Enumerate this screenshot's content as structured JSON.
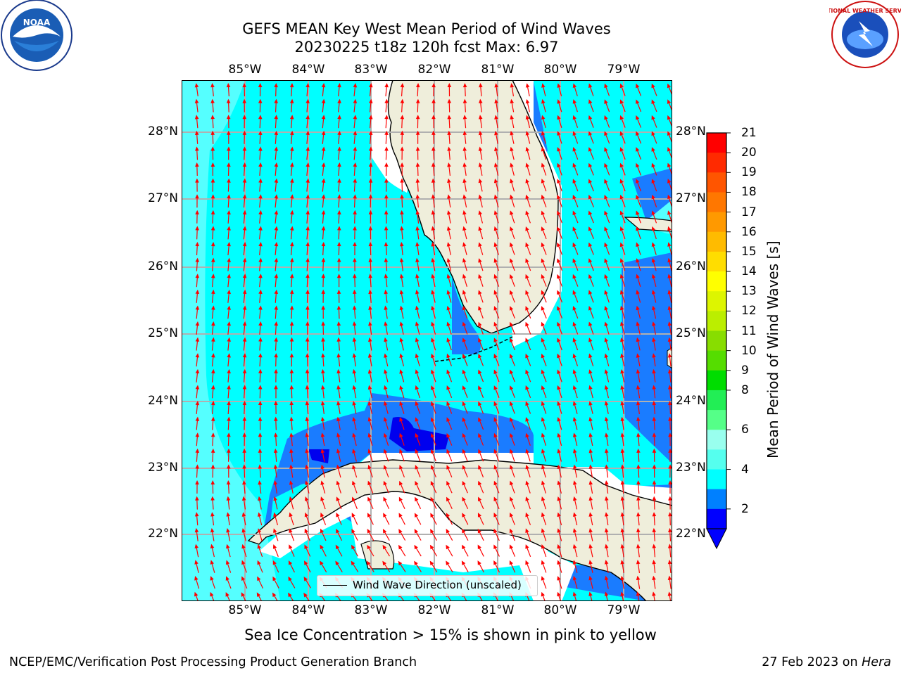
{
  "title": {
    "line1": "GEFS MEAN Key West Mean Period of Wind Waves",
    "line2": "20230225 t18z 120h fcst   Max: 6.97"
  },
  "x_ticks": [
    "85°W",
    "84°W",
    "83°W",
    "82°W",
    "81°W",
    "80°W",
    "79°W"
  ],
  "y_ticks": [
    "28°N",
    "27°N",
    "26°N",
    "25°N",
    "24°N",
    "23°N",
    "22°N"
  ],
  "legend": {
    "label": "Wind Wave Direction (unscaled)"
  },
  "colorbar": {
    "label": "Mean Period of Wind Waves [s]",
    "ticks": [
      "21",
      "20",
      "19",
      "18",
      "17",
      "16",
      "15",
      "14",
      "13",
      "12",
      "11",
      "10",
      "9",
      "8",
      "6",
      "4",
      "2"
    ],
    "colors": [
      "#ff0000",
      "#ff2a00",
      "#ff5500",
      "#ff7700",
      "#ff9900",
      "#ffbb00",
      "#ffdd00",
      "#ffff00",
      "#ddf500",
      "#bbee00",
      "#88dd00",
      "#55dd00",
      "#00dd00",
      "#22ee55",
      "#55ff88",
      "#99ffee",
      "#55ffee",
      "#00ffff",
      "#0080ff",
      "#0000ff"
    ]
  },
  "colors": {
    "land": "#efeedb",
    "shallow_cyan": "#00ffff",
    "light_cyan": "#55ffff",
    "blue": "#1a7cff",
    "dark_blue": "#0000ee",
    "arrow": "#ff0000",
    "grid": "#b0b0b0"
  },
  "logos": {
    "noaa": "NOAA",
    "nws": "NATIONAL WEATHER SERVICE"
  },
  "subtitle": "Sea Ice Concentration > 15% is shown in pink to yellow",
  "footer": {
    "left": "NCEP/EMC/Verification Post Processing Product Generation Branch",
    "date": "27 Feb 2023 on ",
    "machine": "Hera"
  }
}
